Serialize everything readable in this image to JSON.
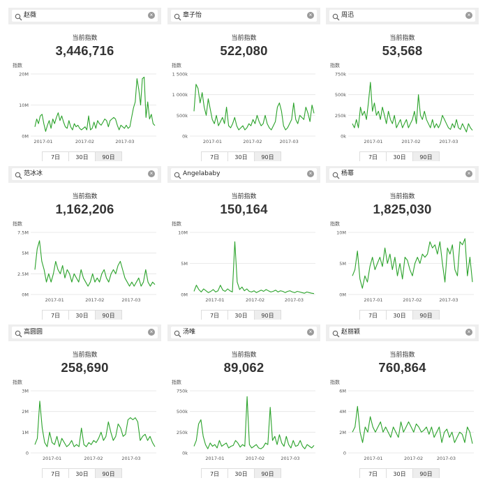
{
  "theme": {
    "line_color": "#2aa22a",
    "grid_color": "#e3e3e3",
    "axis_text": "#555555"
  },
  "panels": [
    {
      "search": "赵薇",
      "index_label": "当前指数",
      "index_value": "3,446,716",
      "tabs": [
        "7日",
        "30日",
        "90日"
      ],
      "active_tab": 2,
      "chart_data": {
        "type": "line",
        "ylabel": "指数",
        "ylim": [
          0,
          20000000
        ],
        "yticks": [
          0,
          10000000,
          20000000
        ],
        "ytick_labels": [
          "0M",
          "10M",
          "20M"
        ],
        "x_labels": [
          "2017-01",
          "2017-02",
          "2017-03"
        ],
        "x_label_positions": [
          0.1,
          0.43,
          0.75
        ],
        "values": [
          3000000,
          5500000,
          4000000,
          6500000,
          7000000,
          4000000,
          1500000,
          3500000,
          5000000,
          2500000,
          5500000,
          4000000,
          6000000,
          7500000,
          5000000,
          6500000,
          4500000,
          3000000,
          2500000,
          5000000,
          3000000,
          2000000,
          4000000,
          3000000,
          3500000,
          2500000,
          2000000,
          2500000,
          3000000,
          2000000,
          6500000,
          2000000,
          2500000,
          4500000,
          2500000,
          5000000,
          4000000,
          3500000,
          4500000,
          5500000,
          5000000,
          3000000,
          5000000,
          5500000,
          6000000,
          5500000,
          3500000,
          2000000,
          3500000,
          3000000,
          2500000,
          3500000,
          2500000,
          3000000,
          6000000,
          9000000,
          11000000,
          18500000,
          15000000,
          10000000,
          18500000,
          19000000,
          6000000,
          11000000,
          5500000,
          7000000,
          4000000,
          3400000
        ]
      }
    },
    {
      "search": "章子怡",
      "index_label": "当前指数",
      "index_value": "522,080",
      "tabs": [
        "7日",
        "30日",
        "90日"
      ],
      "active_tab": 2,
      "chart_data": {
        "type": "line",
        "ylabel": "指数",
        "ylim": [
          0,
          1500000
        ],
        "yticks": [
          0,
          500000,
          1000000,
          1500000
        ],
        "ytick_labels": [
          "0k",
          "500k",
          "1 000k",
          "1 500k"
        ],
        "x_labels": [
          "2017-01",
          "2017-02",
          "2017-03"
        ],
        "x_label_positions": [
          0.18,
          0.5,
          0.79
        ],
        "values": [
          600000,
          1250000,
          1150000,
          800000,
          1050000,
          700000,
          500000,
          900000,
          650000,
          400000,
          300000,
          500000,
          250000,
          350000,
          450000,
          300000,
          700000,
          250000,
          200000,
          300000,
          450000,
          250000,
          150000,
          200000,
          250000,
          150000,
          200000,
          300000,
          250000,
          400000,
          300000,
          500000,
          350000,
          250000,
          300000,
          500000,
          300000,
          200000,
          150000,
          250000,
          350000,
          700000,
          800000,
          600000,
          250000,
          150000,
          200000,
          300000,
          400000,
          800000,
          400000,
          300000,
          500000,
          450000,
          400000,
          700000,
          550000,
          350000,
          750000,
          550000
        ]
      }
    },
    {
      "search": "周迅",
      "index_label": "当前指数",
      "index_value": "53,568",
      "tabs": [
        "7日",
        "30日",
        "90日"
      ],
      "active_tab": 2,
      "chart_data": {
        "type": "line",
        "ylabel": "指数",
        "ylim": [
          0,
          750000
        ],
        "yticks": [
          0,
          250000,
          500000,
          750000
        ],
        "ytick_labels": [
          "0k",
          "250k",
          "500k",
          "750k"
        ],
        "x_labels": [
          "2017-01",
          "2017-02",
          "2017-03"
        ],
        "x_label_positions": [
          0.2,
          0.5,
          0.8
        ],
        "values": [
          150000,
          100000,
          200000,
          100000,
          350000,
          250000,
          300000,
          200000,
          400000,
          650000,
          300000,
          400000,
          250000,
          300000,
          200000,
          350000,
          250000,
          150000,
          300000,
          200000,
          150000,
          250000,
          100000,
          150000,
          200000,
          100000,
          150000,
          200000,
          100000,
          150000,
          200000,
          300000,
          150000,
          500000,
          250000,
          200000,
          300000,
          200000,
          150000,
          100000,
          200000,
          100000,
          150000,
          100000,
          150000,
          250000,
          200000,
          150000,
          100000,
          80000,
          150000,
          100000,
          200000,
          100000,
          80000,
          150000,
          100000,
          50000,
          150000,
          100000,
          70000
        ]
      }
    },
    {
      "search": "范冰冰",
      "index_label": "当前指数",
      "index_value": "1,162,206",
      "tabs": [
        "7日",
        "30日",
        "90日"
      ],
      "active_tab": 2,
      "chart_data": {
        "type": "line",
        "ylabel": "指数",
        "ylim": [
          0,
          7500000
        ],
        "yticks": [
          0,
          2500000,
          5000000,
          7500000
        ],
        "ytick_labels": [
          "0M",
          "2.5M",
          "5M",
          "7.5M"
        ],
        "x_labels": [
          "2017-01",
          "2017-02",
          "2017-03"
        ],
        "x_label_positions": [
          0.19,
          0.51,
          0.8
        ],
        "values": [
          3000000,
          5500000,
          6500000,
          4000000,
          3000000,
          1500000,
          2500000,
          1500000,
          2500000,
          4000000,
          3000000,
          2500000,
          3500000,
          2000000,
          3000000,
          2500000,
          1500000,
          2500000,
          2000000,
          1500000,
          3000000,
          2000000,
          1500000,
          1000000,
          1500000,
          2500000,
          1500000,
          2000000,
          1500000,
          2500000,
          3000000,
          2000000,
          1500000,
          2500000,
          3000000,
          2500000,
          3500000,
          4000000,
          3000000,
          2000000,
          1500000,
          1000000,
          1500000,
          1000000,
          1500000,
          2000000,
          1000000,
          1500000,
          3000000,
          1500000,
          1000000,
          1500000,
          1200000
        ]
      }
    },
    {
      "search": "Angelababy",
      "index_label": "当前指数",
      "index_value": "150,164",
      "tabs": [
        "7日",
        "30日",
        "90日"
      ],
      "active_tab": 2,
      "chart_data": {
        "type": "line",
        "ylabel": "指数",
        "ylim": [
          0,
          10000000
        ],
        "yticks": [
          0,
          5000000,
          10000000
        ],
        "ytick_labels": [
          "0M",
          "5M",
          "10M"
        ],
        "x_labels": [
          "2017-01",
          "2017-02",
          "2017-03"
        ],
        "x_label_positions": [
          0.2,
          0.52,
          0.83
        ],
        "values": [
          500000,
          1500000,
          800000,
          400000,
          900000,
          600000,
          300000,
          500000,
          800000,
          400000,
          600000,
          1500000,
          700000,
          500000,
          900000,
          600000,
          400000,
          8500000,
          2000000,
          800000,
          1200000,
          600000,
          900000,
          500000,
          400000,
          600000,
          300000,
          500000,
          700000,
          500000,
          800000,
          600000,
          400000,
          500000,
          700000,
          400000,
          600000,
          500000,
          300000,
          500000,
          600000,
          400000,
          300000,
          500000,
          400000,
          300000,
          200000,
          400000,
          300000,
          200000,
          150000
        ]
      }
    },
    {
      "search": "杨幂",
      "index_label": "当前指数",
      "index_value": "1,825,030",
      "tabs": [
        "7日",
        "30日",
        "90日"
      ],
      "active_tab": 2,
      "chart_data": {
        "type": "line",
        "ylabel": "指数",
        "ylim": [
          0,
          10000000
        ],
        "yticks": [
          0,
          5000000,
          10000000
        ],
        "ytick_labels": [
          "0M",
          "5M",
          "10M"
        ],
        "x_labels": [
          "2017-01",
          "2017-02",
          "2017-03"
        ],
        "x_label_positions": [
          0.2,
          0.51,
          0.8
        ],
        "values": [
          3000000,
          4000000,
          7000000,
          2500000,
          1000000,
          3000000,
          2000000,
          4500000,
          6000000,
          4000000,
          5000000,
          6000000,
          4500000,
          7500000,
          5000000,
          6500000,
          4000000,
          6000000,
          3000000,
          5000000,
          2500000,
          6000000,
          5500000,
          4000000,
          3000000,
          5000000,
          6000000,
          5000000,
          6500000,
          6000000,
          6500000,
          8500000,
          7500000,
          8000000,
          6500000,
          8500000,
          5000000,
          2000000,
          7500000,
          6500000,
          8000000,
          4000000,
          3000000,
          8500000,
          8000000,
          9000000,
          3000000,
          6000000,
          2000000
        ]
      }
    },
    {
      "search": "高圆圆",
      "index_label": "当前指数",
      "index_value": "258,690",
      "tabs": [
        "7日",
        "30日",
        "90日"
      ],
      "active_tab": 2,
      "chart_data": {
        "type": "line",
        "ylabel": "指数",
        "ylim": [
          0,
          3000000
        ],
        "yticks": [
          0,
          1000000,
          2000000,
          3000000
        ],
        "ytick_labels": [
          "0",
          "1M",
          "2M",
          "3M"
        ],
        "x_labels": [
          "2017-01",
          "2017-02",
          "2017-03"
        ],
        "x_label_positions": [
          0.17,
          0.5,
          0.8
        ],
        "values": [
          400000,
          700000,
          2500000,
          1200000,
          500000,
          300000,
          1000000,
          500000,
          400000,
          800000,
          300000,
          700000,
          500000,
          300000,
          400000,
          600000,
          300000,
          400000,
          300000,
          1200000,
          400000,
          300000,
          500000,
          400000,
          600000,
          500000,
          700000,
          1000000,
          600000,
          800000,
          1500000,
          1000000,
          600000,
          800000,
          1400000,
          1200000,
          800000,
          900000,
          1600000,
          1700000,
          1600000,
          1700000,
          1500000,
          600000,
          800000,
          900000,
          600000,
          800000,
          500000,
          300000
        ]
      }
    },
    {
      "search": "汤唯",
      "index_label": "当前指数",
      "index_value": "89,062",
      "tabs": [
        "7日",
        "30日",
        "90日"
      ],
      "active_tab": 2,
      "chart_data": {
        "type": "line",
        "ylabel": "指数",
        "ylim": [
          0,
          750000
        ],
        "yticks": [
          0,
          250000,
          500000,
          750000
        ],
        "ytick_labels": [
          "0k",
          "250k",
          "500k",
          "750k"
        ],
        "x_labels": [
          "2017-01",
          "2017-02",
          "2017-03"
        ],
        "x_label_positions": [
          0.2,
          0.52,
          0.8
        ],
        "values": [
          80000,
          150000,
          350000,
          400000,
          200000,
          100000,
          50000,
          120000,
          80000,
          100000,
          60000,
          150000,
          80000,
          100000,
          120000,
          60000,
          80000,
          90000,
          150000,
          120000,
          70000,
          100000,
          80000,
          680000,
          100000,
          60000,
          80000,
          100000,
          60000,
          50000,
          70000,
          120000,
          100000,
          550000,
          150000,
          200000,
          100000,
          220000,
          120000,
          80000,
          200000,
          100000,
          60000,
          150000,
          80000,
          90000,
          150000,
          80000,
          50000,
          100000,
          80000,
          60000,
          90000
        ]
      }
    },
    {
      "search": "赵丽颖",
      "index_label": "当前指数",
      "index_value": "760,864",
      "tabs": [
        "7日",
        "30日",
        "90日"
      ],
      "active_tab": 2,
      "chart_data": {
        "type": "line",
        "ylabel": "指数",
        "ylim": [
          0,
          6000000
        ],
        "yticks": [
          0,
          2000000,
          4000000,
          6000000
        ],
        "ytick_labels": [
          "0",
          "2M",
          "4M",
          "6M"
        ],
        "x_labels": [
          "2017-01",
          "2017-02",
          "2017-03"
        ],
        "x_label_positions": [
          0.2,
          0.52,
          0.78
        ],
        "values": [
          2000000,
          2500000,
          4500000,
          2000000,
          1000000,
          2500000,
          2000000,
          3500000,
          2500000,
          2000000,
          2500000,
          3000000,
          2000000,
          2500000,
          2000000,
          1500000,
          2500000,
          2000000,
          1500000,
          3000000,
          2000000,
          2500000,
          3000000,
          2500000,
          2000000,
          2800000,
          2500000,
          2000000,
          2200000,
          2500000,
          1800000,
          2500000,
          1500000,
          2000000,
          2500000,
          1000000,
          2000000,
          2300000,
          1500000,
          2000000,
          1000000,
          1500000,
          2000000,
          1800000,
          1000000,
          2500000,
          2000000,
          900000
        ]
      }
    }
  ]
}
